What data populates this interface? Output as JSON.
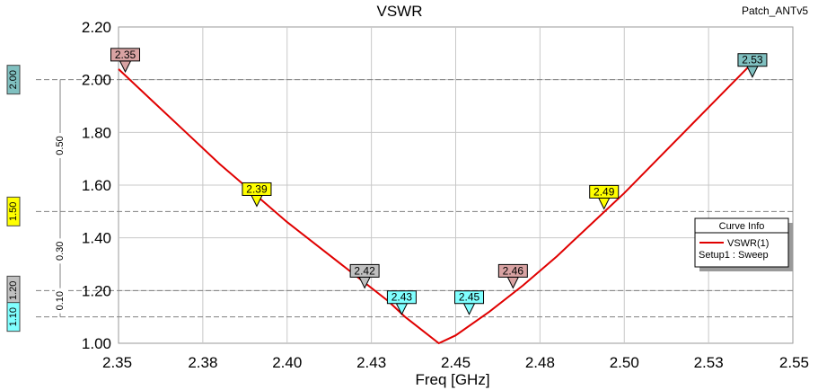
{
  "chart_data": {
    "type": "line",
    "title": "VSWR",
    "project": "Patch_ANTv5",
    "xlabel": "Freq [GHz]",
    "ylabel": "",
    "xlim": [
      2.35,
      2.55
    ],
    "ylim": [
      1.0,
      2.2
    ],
    "x_ticks": [
      "2.35",
      "2.38",
      "2.40",
      "2.43",
      "2.45",
      "2.48",
      "2.50",
      "2.53",
      "2.55"
    ],
    "y_ticks": [
      "1.00",
      "1.20",
      "1.40",
      "1.60",
      "1.80",
      "2.00",
      "2.20"
    ],
    "grid": true,
    "series": [
      {
        "name": "VSWR(1)",
        "color": "#e00000",
        "x": [
          2.35,
          2.36,
          2.37,
          2.38,
          2.39,
          2.4,
          2.41,
          2.42,
          2.43,
          2.435,
          2.44,
          2.445,
          2.45,
          2.46,
          2.47,
          2.48,
          2.49,
          2.5,
          2.51,
          2.52,
          2.53,
          2.54
        ],
        "y": [
          2.04,
          1.92,
          1.8,
          1.68,
          1.57,
          1.46,
          1.36,
          1.26,
          1.16,
          1.1,
          1.05,
          1.0,
          1.03,
          1.12,
          1.22,
          1.33,
          1.45,
          1.57,
          1.7,
          1.83,
          1.96,
          2.09
        ]
      }
    ],
    "markers": [
      {
        "label": "2.35",
        "x": 2.352,
        "y": 2.03,
        "color": "#d9a3a3"
      },
      {
        "label": "2.39",
        "x": 2.391,
        "y": 1.52,
        "color": "#ffff00"
      },
      {
        "label": "2.42",
        "x": 2.423,
        "y": 1.21,
        "color": "#c0c0c0"
      },
      {
        "label": "2.43",
        "x": 2.434,
        "y": 1.11,
        "color": "#80ffff"
      },
      {
        "label": "2.45",
        "x": 2.454,
        "y": 1.11,
        "color": "#80ffff"
      },
      {
        "label": "2.46",
        "x": 2.467,
        "y": 1.21,
        "color": "#d9a3a3"
      },
      {
        "label": "2.49",
        "x": 2.494,
        "y": 1.51,
        "color": "#ffff00"
      },
      {
        "label": "2.53",
        "x": 2.538,
        "y": 2.01,
        "color": "#80c0c0"
      }
    ],
    "reference_lines": [
      {
        "value": "2.00",
        "y": 2.0,
        "color": "#80c0c0"
      },
      {
        "value": "1.50",
        "y": 1.5,
        "color": "#ffff00"
      },
      {
        "value": "1.20",
        "y": 1.2,
        "color": "#c0c0c0"
      },
      {
        "value": "1.10",
        "y": 1.1,
        "color": "#80ffff"
      }
    ],
    "deltas": [
      {
        "value": "0.50",
        "from": 1.5,
        "to": 2.0
      },
      {
        "value": "0.30",
        "from": 1.2,
        "to": 1.5
      },
      {
        "value": "0.10",
        "from": 1.1,
        "to": 1.2
      }
    ],
    "legend": {
      "title": "Curve Info",
      "entry": "VSWR(1)",
      "subentry": "Setup1 : Sweep",
      "position": "right"
    }
  }
}
